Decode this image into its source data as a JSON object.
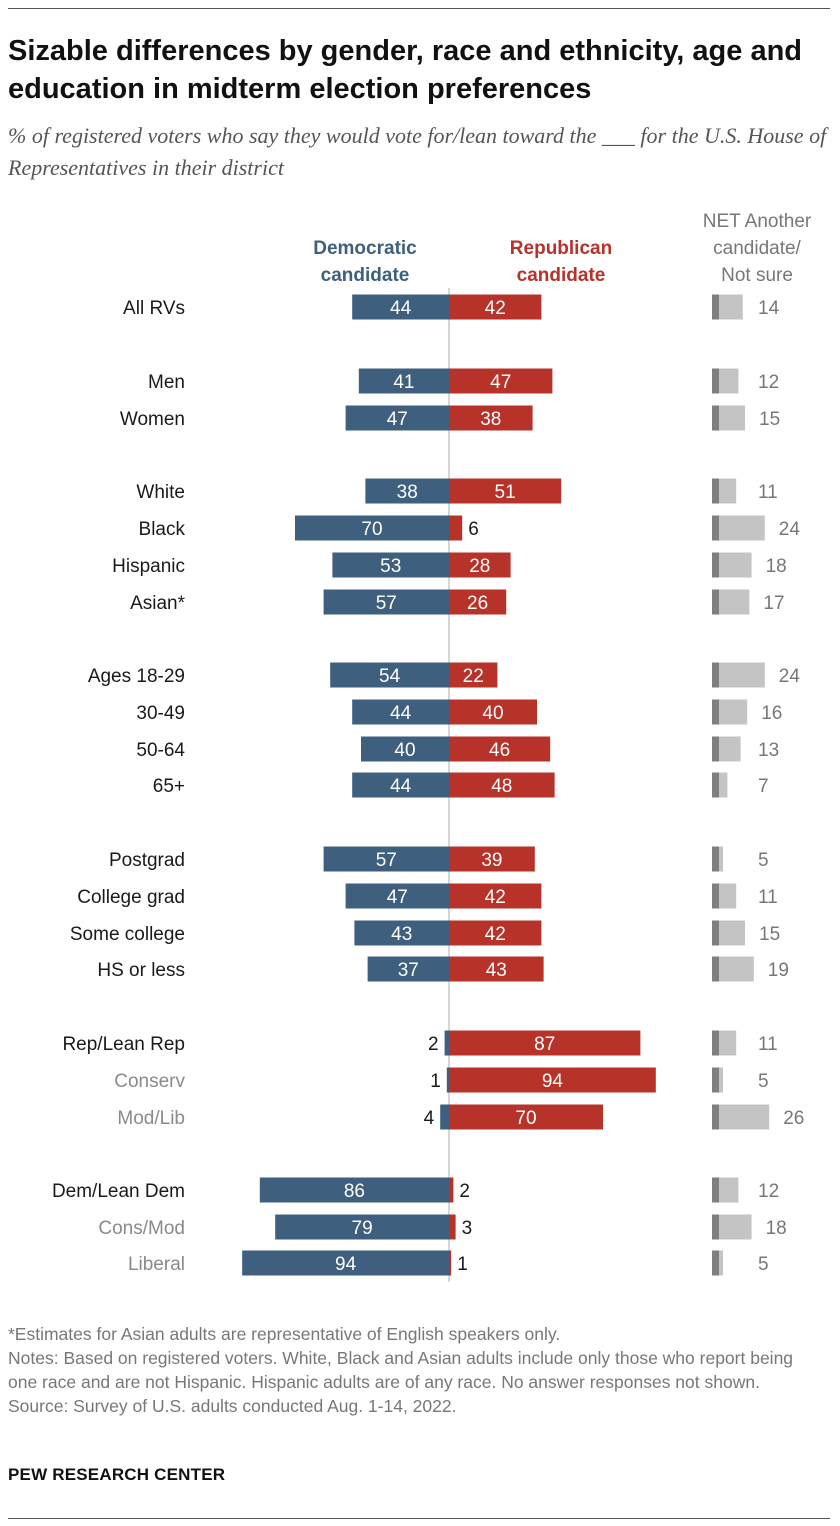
{
  "title": "Sizable differences by gender, race and ethnicity, age and education in midterm election preferences",
  "subtitle": "% of registered voters who say they would vote for/lean toward the ___ for the U.S. House of Representatives in their district",
  "colors": {
    "dem": "#3e5f7e",
    "rep": "#b73229",
    "other_dark": "#7f7f7f",
    "other_light": "#c4c4c4",
    "label_muted": "#8a8a8a",
    "other_label": "#777777"
  },
  "chart_data": {
    "type": "bar",
    "series": [
      {
        "name": "Democratic candidate",
        "values": [
          44,
          41,
          47,
          38,
          70,
          53,
          57,
          54,
          44,
          40,
          44,
          57,
          47,
          43,
          37,
          2,
          1,
          4,
          86,
          79,
          94
        ]
      },
      {
        "name": "Republican candidate",
        "values": [
          42,
          47,
          38,
          51,
          6,
          28,
          26,
          22,
          40,
          46,
          48,
          39,
          42,
          42,
          43,
          87,
          94,
          70,
          2,
          3,
          1
        ]
      },
      {
        "name": "NET Another candidate/ Not sure",
        "values": [
          14,
          12,
          15,
          11,
          24,
          18,
          17,
          24,
          16,
          13,
          7,
          5,
          11,
          15,
          19,
          11,
          5,
          26,
          12,
          18,
          5
        ]
      }
    ],
    "categories": [
      "All RVs",
      "Men",
      "Women",
      "White",
      "Black",
      "Hispanic",
      "Asian*",
      "Ages 18-29",
      "30-49",
      "50-64",
      "65+",
      "Postgrad",
      "College grad",
      "Some college",
      "HS or less",
      "Rep/Lean Rep",
      "Conserv",
      "Mod/Lib",
      "Dem/Lean Dem",
      "Cons/Mod",
      "Liberal"
    ],
    "subgroup_categories": [
      "Conserv",
      "Mod/Lib",
      "Cons/Mod",
      "Liberal"
    ],
    "header_labels": {
      "dem": [
        "Democratic",
        "candidate"
      ],
      "rep": [
        "Republican",
        "candidate"
      ],
      "other": [
        "NET Another",
        "candidate/",
        "Not sure"
      ]
    }
  },
  "notes": {
    "asterisk": "*Estimates for Asian adults are representative of English speakers only.",
    "notes": "Notes: Based on registered voters. White, Black and Asian adults include only those who report being one race and are not Hispanic. Hispanic adults are of any race. No answer responses not shown.",
    "source": "Source: Survey of U.S. adults conducted Aug. 1-14, 2022."
  },
  "brand": "PEW RESEARCH CENTER"
}
